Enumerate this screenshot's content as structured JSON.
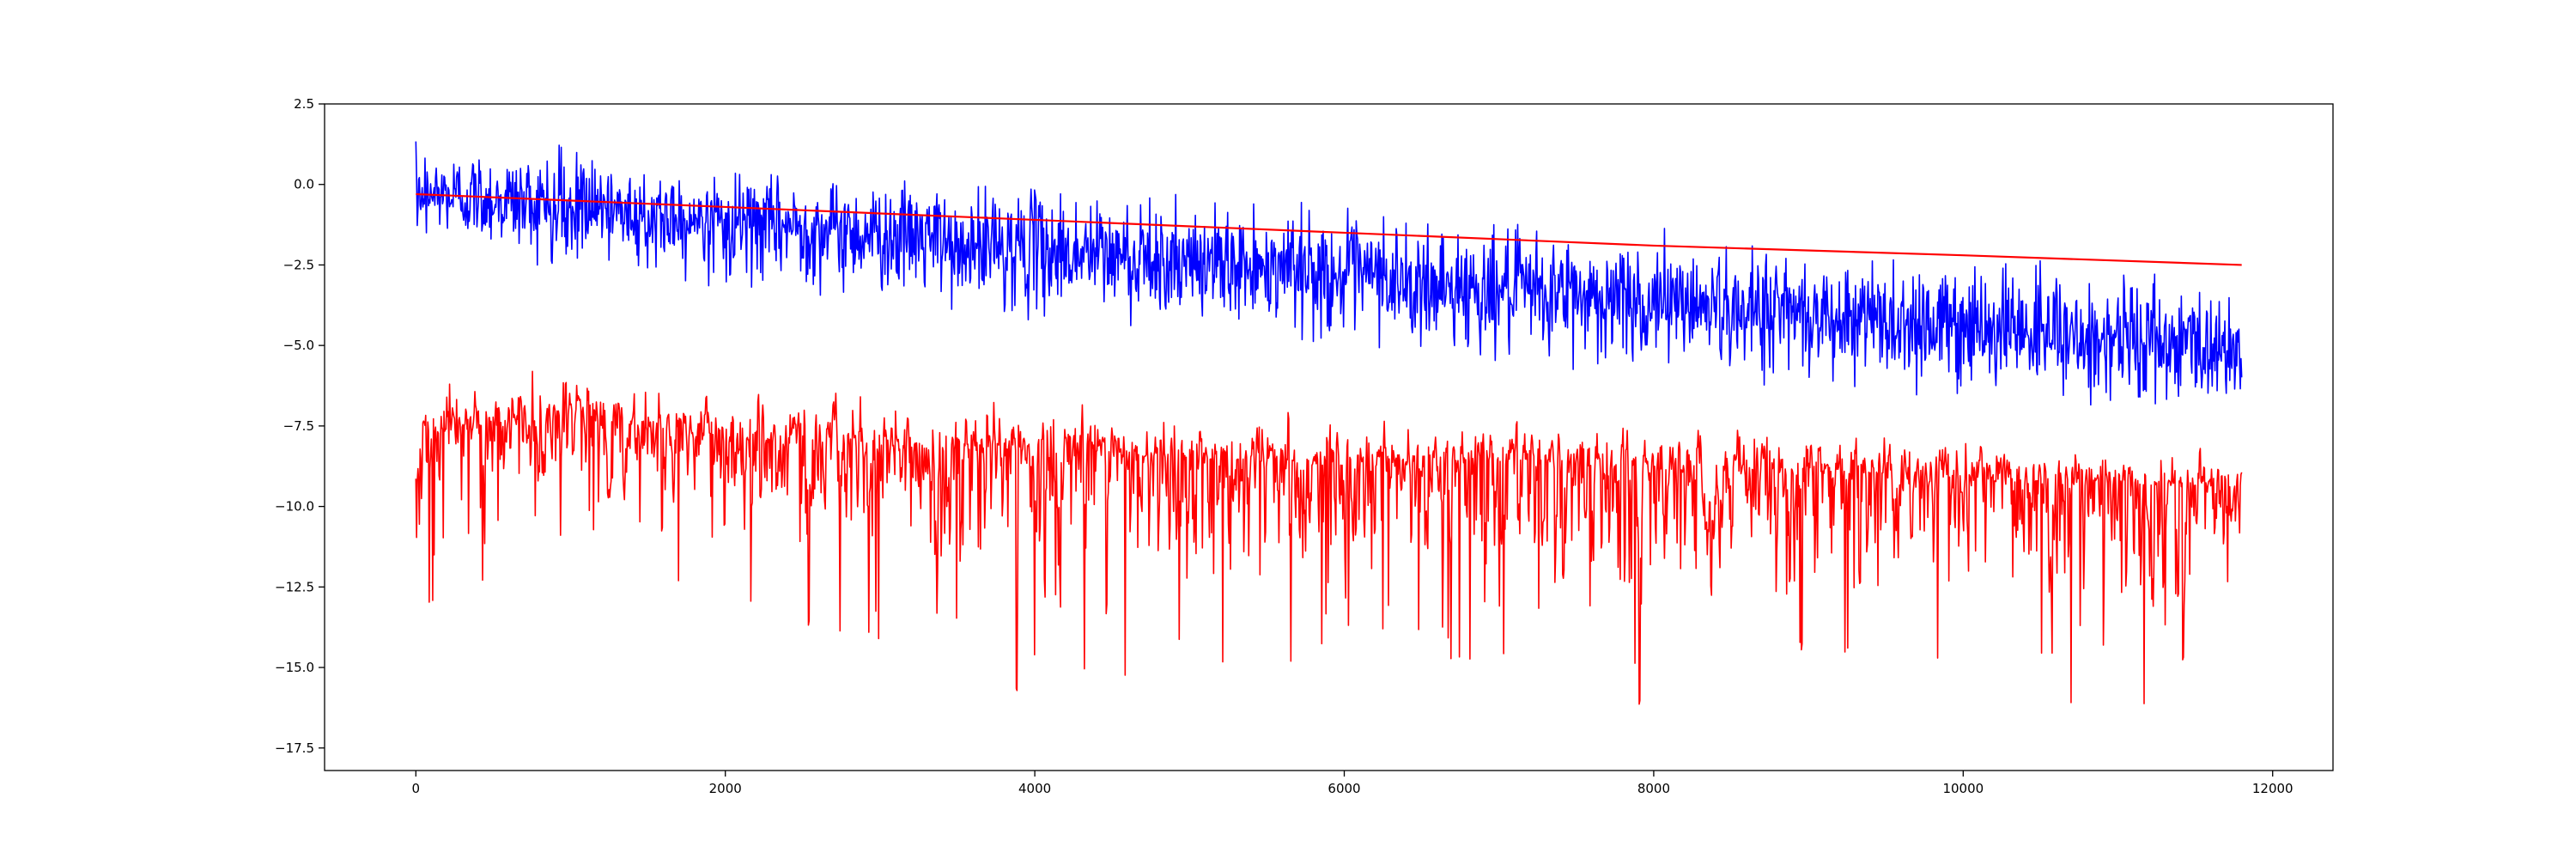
{
  "chart_data": {
    "type": "line",
    "title": "",
    "xlabel": "",
    "ylabel": "",
    "xlim": [
      -590,
      12390
    ],
    "ylim": [
      -18.2,
      2.5
    ],
    "x_ticks": [
      0,
      2000,
      4000,
      6000,
      8000,
      10000,
      12000
    ],
    "x_tick_labels": [
      "0",
      "2000",
      "4000",
      "6000",
      "8000",
      "10000",
      "12000"
    ],
    "y_ticks": [
      2.5,
      0.0,
      -2.5,
      -5.0,
      -7.5,
      -10.0,
      -12.5,
      -15.0,
      -17.5
    ],
    "y_tick_labels": [
      "2.5",
      "0.0",
      "−2.5",
      "−5.0",
      "−7.5",
      "−10.0",
      "−12.5",
      "−15.0",
      "−17.5"
    ],
    "grid": false,
    "legend": "none",
    "n_points": 11800,
    "series": [
      {
        "style": "noisy",
        "color": "#0000ff",
        "x": [
          0,
          1000,
          2000,
          3000,
          4000,
          5000,
          6000,
          7000,
          8000,
          9000,
          10000,
          11000,
          11800
        ],
        "values": [
          -0.3,
          -0.7,
          -1.1,
          -1.5,
          -2.0,
          -2.4,
          -2.9,
          -3.3,
          -3.6,
          -4.0,
          -4.4,
          -4.8,
          -5.2
        ],
        "min": [
          -1.5,
          -2.8,
          -3.2,
          -3.7,
          -4.3,
          -4.6,
          -5.0,
          -5.6,
          -6.0,
          -6.4,
          -6.8,
          -7.0,
          -7.3
        ],
        "max": [
          1.5,
          1.3,
          0.5,
          0.3,
          0.2,
          -0.3,
          -0.6,
          -1.1,
          -1.2,
          -1.7,
          -2.0,
          -2.1,
          -3.5
        ]
      },
      {
        "style": "smooth",
        "color": "#ff0000",
        "x": [
          0,
          2000,
          4000,
          6000,
          8000,
          10000,
          11800
        ],
        "values": [
          -0.3,
          -0.7,
          -1.1,
          -1.5,
          -1.9,
          -2.2,
          -2.5
        ]
      },
      {
        "style": "noisy",
        "color": "#ff0000",
        "x": [
          0,
          1000,
          2000,
          3000,
          4000,
          5000,
          6000,
          7000,
          8000,
          9000,
          10000,
          11000,
          11800
        ],
        "values": [
          -7.8,
          -7.2,
          -7.9,
          -8.3,
          -8.3,
          -8.6,
          -8.8,
          -8.6,
          -8.9,
          -8.9,
          -9.2,
          -9.4,
          -9.4
        ],
        "min": [
          -13.3,
          -11.0,
          -13.0,
          -14.3,
          -16.1,
          -15.0,
          -14.9,
          -14.8,
          -16.4,
          -14.4,
          -15.0,
          -17.1,
          -13.0
        ],
        "max": [
          -6.0,
          -5.2,
          -5.7,
          -6.0,
          -6.1,
          -6.2,
          -6.6,
          -6.5,
          -6.7,
          -6.8,
          -7.4,
          -7.7,
          -8.0
        ]
      }
    ]
  }
}
